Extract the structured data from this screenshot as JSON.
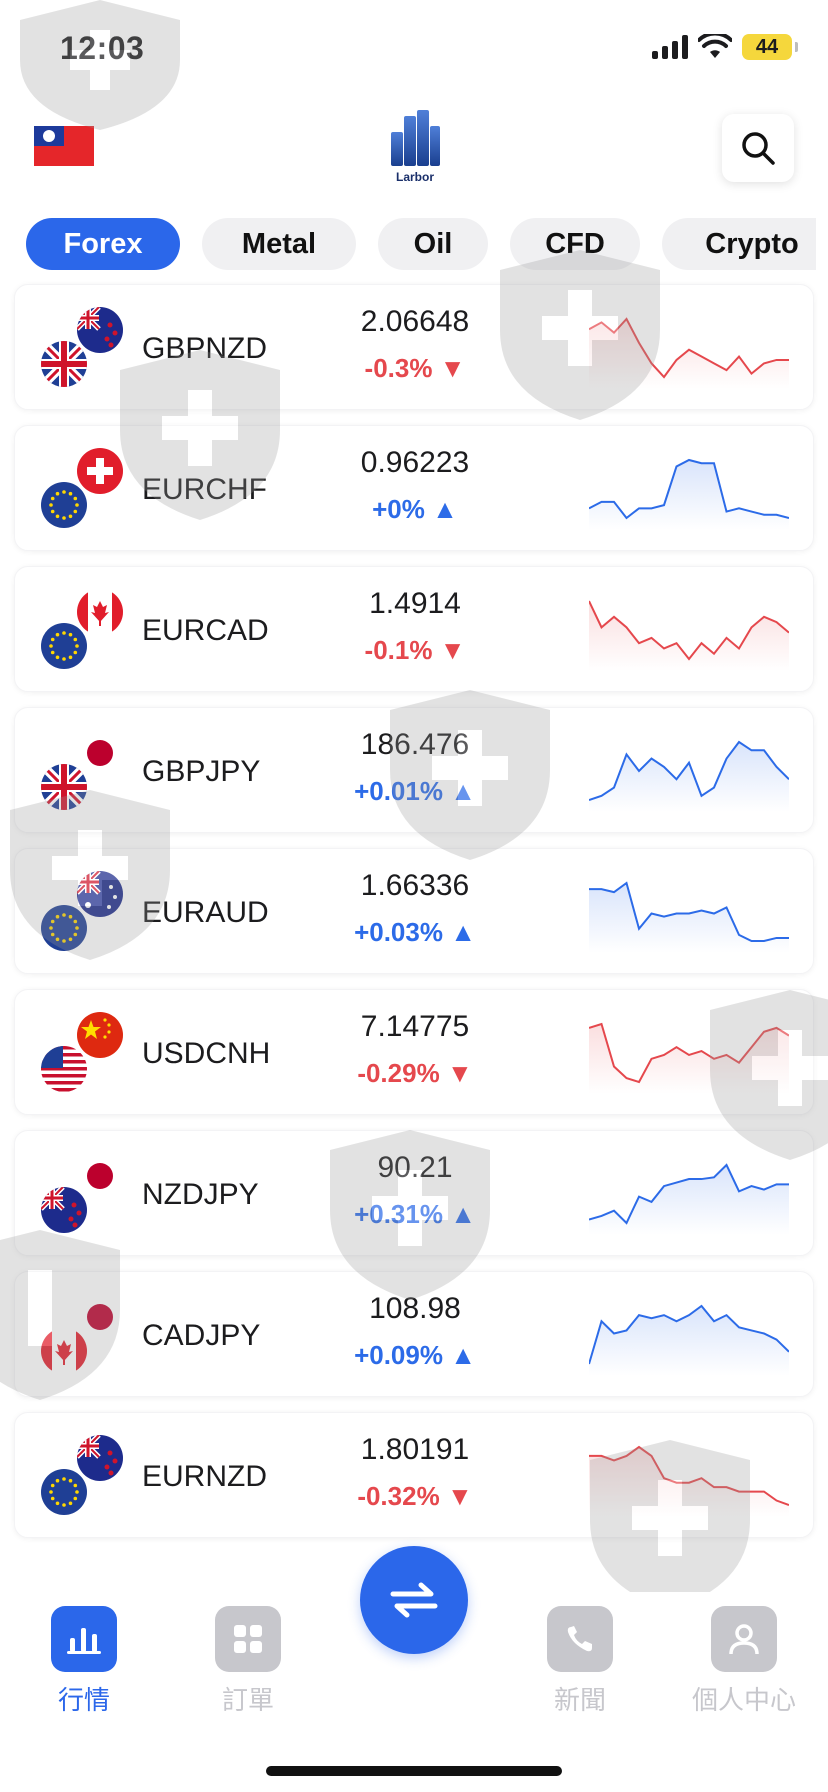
{
  "status_bar": {
    "time": "12:03",
    "battery": "44"
  },
  "header": {
    "logo_text": "Larbor"
  },
  "tabs": [
    {
      "label": "Forex",
      "active": true
    },
    {
      "label": "Metal",
      "active": false
    },
    {
      "label": "Oil",
      "active": false
    },
    {
      "label": "CFD",
      "active": false
    },
    {
      "label": "Crypto",
      "active": false
    }
  ],
  "quotes": [
    {
      "symbol": "GBPNZD",
      "price": "2.06648",
      "change": "-0.3%",
      "direction": "down",
      "flags": [
        "gb",
        "nz"
      ],
      "spark": [
        70,
        72,
        69,
        73,
        66,
        60,
        56,
        61,
        64,
        62,
        60,
        58,
        62,
        57,
        60,
        61,
        61
      ]
    },
    {
      "symbol": "EURCHF",
      "price": "0.96223",
      "change": "+0%",
      "direction": "up",
      "flags": [
        "eu",
        "ch"
      ],
      "spark": [
        45,
        47,
        47,
        42,
        45,
        45,
        46,
        58,
        60,
        59,
        59,
        44,
        45,
        44,
        43,
        43,
        42
      ]
    },
    {
      "symbol": "EURCAD",
      "price": "1.4914",
      "change": "-0.1%",
      "direction": "down",
      "flags": [
        "eu",
        "ca"
      ],
      "spark": [
        64,
        59,
        61,
        59,
        56,
        57,
        55,
        56,
        53,
        56,
        54,
        57,
        55,
        59,
        61,
        60,
        58
      ]
    },
    {
      "symbol": "GBPJPY",
      "price": "186.476",
      "change": "+0.01%",
      "direction": "up",
      "flags": [
        "gb",
        "jp"
      ],
      "spark": [
        43,
        44,
        46,
        54,
        50,
        53,
        51,
        48,
        52,
        44,
        46,
        53,
        57,
        55,
        55,
        51,
        48
      ]
    },
    {
      "symbol": "EURAUD",
      "price": "1.66336",
      "change": "+0.03%",
      "direction": "up",
      "flags": [
        "eu",
        "au"
      ],
      "spark": [
        68,
        68,
        67,
        70,
        55,
        60,
        59,
        60,
        60,
        61,
        60,
        62,
        53,
        51,
        51,
        52,
        52
      ]
    },
    {
      "symbol": "USDCNH",
      "price": "7.14775",
      "change": "-0.29%",
      "direction": "down",
      "flags": [
        "us",
        "cn"
      ],
      "spark": [
        7.155,
        7.156,
        7.145,
        7.142,
        7.141,
        7.147,
        7.148,
        7.15,
        7.148,
        7.149,
        7.147,
        7.148,
        7.146,
        7.15,
        7.154,
        7.155,
        7.153
      ]
    },
    {
      "symbol": "NZDJPY",
      "price": "90.21",
      "change": "+0.31%",
      "direction": "up",
      "flags": [
        "nz",
        "jp"
      ],
      "spark": [
        89.95,
        89.97,
        90.0,
        89.93,
        90.08,
        90.05,
        90.14,
        90.16,
        90.18,
        90.18,
        90.19,
        90.26,
        90.11,
        90.14,
        90.12,
        90.15,
        90.15
      ]
    },
    {
      "symbol": "CADJPY",
      "price": "108.98",
      "change": "+0.09%",
      "direction": "up",
      "flags": [
        "ca",
        "jp"
      ],
      "spark": [
        108.8,
        108.94,
        108.9,
        108.91,
        108.96,
        108.95,
        108.96,
        108.94,
        108.96,
        108.99,
        108.94,
        108.96,
        108.92,
        108.91,
        108.9,
        108.88,
        108.84
      ]
    },
    {
      "symbol": "EURNZD",
      "price": "1.80191",
      "change": "-0.32%",
      "direction": "down",
      "flags": [
        "eu",
        "nz"
      ],
      "spark": [
        1.808,
        1.808,
        1.807,
        1.808,
        1.81,
        1.808,
        1.803,
        1.802,
        1.802,
        1.803,
        1.801,
        1.801,
        1.8,
        1.8,
        1.8,
        1.798,
        1.797
      ]
    }
  ],
  "bottom_nav": [
    {
      "label": "行情",
      "icon": "chart-icon",
      "active": true
    },
    {
      "label": "訂單",
      "icon": "grid-icon",
      "active": false
    },
    {
      "label": "新聞",
      "icon": "phone-icon",
      "active": false
    },
    {
      "label": "個人中心",
      "icon": "user-icon",
      "active": false
    }
  ],
  "colors": {
    "accent": "#2b67ea",
    "up": "#2c6be8",
    "down": "#e5484d"
  }
}
